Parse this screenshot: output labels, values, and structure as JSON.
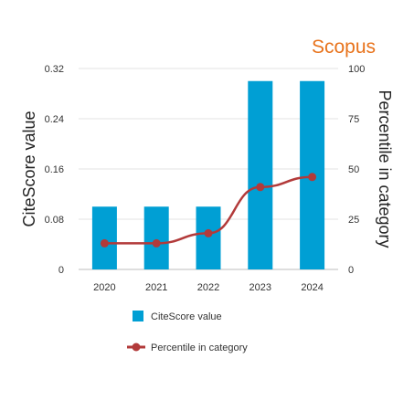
{
  "brand": {
    "label": "Scopus",
    "color": "#e8731c"
  },
  "chart_data": {
    "type": "bar",
    "categories": [
      "2020",
      "2021",
      "2022",
      "2023",
      "2024"
    ],
    "series": [
      {
        "name": "CiteScore value",
        "type": "bar",
        "axis": "left",
        "color": "#009fd4",
        "values": [
          0.1,
          0.1,
          0.1,
          0.3,
          0.3
        ]
      },
      {
        "name": "Percentile in category",
        "type": "line",
        "axis": "right",
        "color": "#b23a3a",
        "values": [
          13,
          13,
          18,
          41,
          46
        ]
      }
    ],
    "ylabel_left": "CiteScore value",
    "ylabel_right": "Percentile in category",
    "ylim_left": [
      0,
      0.32
    ],
    "ylim_right": [
      0,
      100
    ],
    "yticks_left": [
      "0",
      "0.08",
      "0.16",
      "0.24",
      "0.32"
    ],
    "yticks_right": [
      "0",
      "25",
      "50",
      "75",
      "100"
    ],
    "grid": true,
    "legend_position": "bottom"
  }
}
